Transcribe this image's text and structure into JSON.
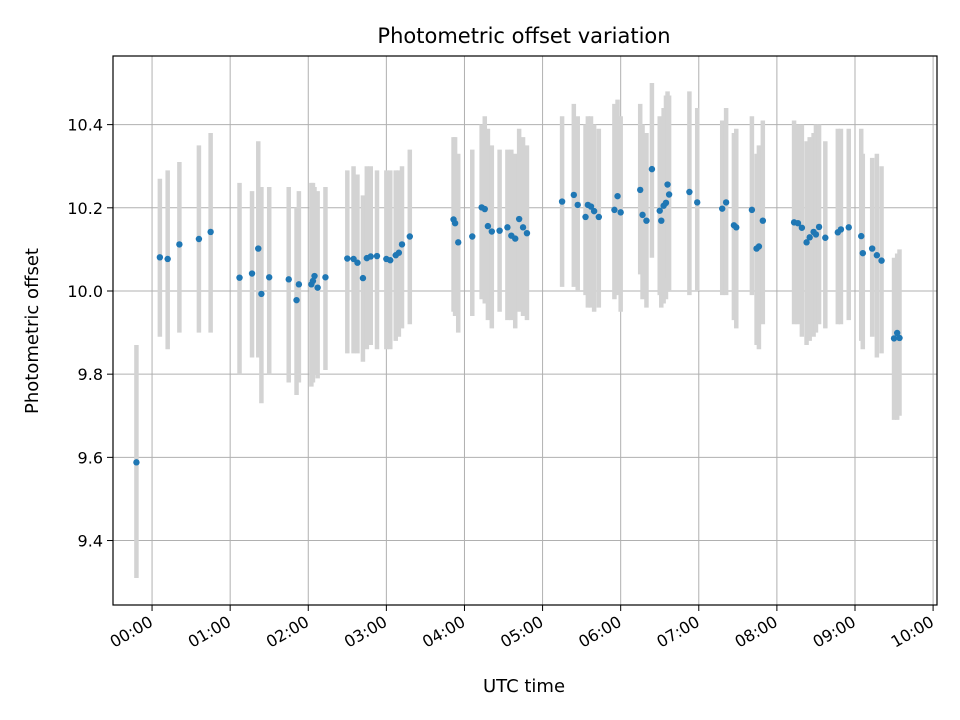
{
  "chart_data": {
    "type": "scatter",
    "title": "Photometric offset variation",
    "xlabel": "UTC time",
    "ylabel": "Photometric offset",
    "xlim": [
      -0.5,
      10.05
    ],
    "ylim": [
      9.245,
      10.565
    ],
    "grid": true,
    "xticks": [
      0,
      1,
      2,
      3,
      4,
      5,
      6,
      7,
      8,
      9,
      10
    ],
    "xtick_labels": [
      "00:00",
      "01:00",
      "02:00",
      "03:00",
      "04:00",
      "05:00",
      "06:00",
      "07:00",
      "08:00",
      "09:00",
      "10:00"
    ],
    "yticks": [
      9.4,
      9.6,
      9.8,
      10.0,
      10.2,
      10.4
    ],
    "ytick_labels": [
      "9.4",
      "9.6",
      "9.8",
      "10.0",
      "10.2",
      "10.4"
    ],
    "point_color": "#1f77b4",
    "errorbar_color": "#d3d3d3",
    "series": [
      {
        "name": "offset",
        "x": [
          -0.2,
          0.1,
          0.2,
          0.35,
          0.6,
          0.75,
          1.12,
          1.28,
          1.36,
          1.4,
          1.5,
          1.75,
          1.85,
          1.88,
          2.04,
          2.06,
          2.08,
          2.12,
          2.22,
          2.5,
          2.58,
          2.63,
          2.7,
          2.75,
          2.8,
          2.88,
          3.0,
          3.05,
          3.12,
          3.16,
          3.2,
          3.3,
          3.86,
          3.88,
          3.92,
          4.1,
          4.22,
          4.26,
          4.3,
          4.35,
          4.45,
          4.55,
          4.6,
          4.65,
          4.7,
          4.75,
          4.8,
          5.25,
          5.4,
          5.45,
          5.55,
          5.58,
          5.62,
          5.66,
          5.72,
          5.92,
          5.96,
          6.0,
          6.25,
          6.28,
          6.33,
          6.4,
          6.5,
          6.52,
          6.55,
          6.58,
          6.6,
          6.62,
          6.88,
          6.98,
          7.3,
          7.35,
          7.45,
          7.48,
          7.68,
          7.74,
          7.77,
          7.82,
          8.22,
          8.27,
          8.32,
          8.38,
          8.42,
          8.47,
          8.5,
          8.54,
          8.62,
          8.78,
          8.82,
          8.92,
          9.08,
          9.1,
          9.22,
          9.28,
          9.34,
          9.5,
          9.54,
          9.57
        ],
        "y": [
          9.588,
          10.081,
          10.077,
          10.112,
          10.125,
          10.142,
          10.032,
          10.042,
          10.102,
          9.993,
          10.033,
          10.028,
          9.978,
          10.016,
          10.016,
          10.024,
          10.036,
          10.008,
          10.033,
          10.078,
          10.077,
          10.068,
          10.031,
          10.079,
          10.083,
          10.084,
          10.077,
          10.074,
          10.086,
          10.092,
          10.112,
          10.131,
          10.172,
          10.163,
          10.117,
          10.131,
          10.201,
          10.197,
          10.156,
          10.143,
          10.145,
          10.153,
          10.133,
          10.126,
          10.173,
          10.153,
          10.139,
          10.215,
          10.231,
          10.207,
          10.178,
          10.207,
          10.203,
          10.192,
          10.178,
          10.195,
          10.228,
          10.189,
          10.243,
          10.183,
          10.169,
          10.293,
          10.193,
          10.169,
          10.205,
          10.212,
          10.256,
          10.232,
          10.238,
          10.213,
          10.198,
          10.213,
          10.158,
          10.153,
          10.195,
          10.102,
          10.107,
          10.169,
          10.165,
          10.163,
          10.152,
          10.117,
          10.129,
          10.142,
          10.136,
          10.154,
          10.128,
          10.141,
          10.148,
          10.153,
          10.132,
          10.091,
          10.102,
          10.086,
          10.073,
          9.886,
          9.899,
          9.887
        ],
        "err_low": [
          9.31,
          9.89,
          9.86,
          9.9,
          9.9,
          9.9,
          9.8,
          9.84,
          9.84,
          9.73,
          9.8,
          9.78,
          9.75,
          9.78,
          9.77,
          9.78,
          9.8,
          9.79,
          9.81,
          9.85,
          9.85,
          9.85,
          9.83,
          9.86,
          9.87,
          9.86,
          9.86,
          9.86,
          9.88,
          9.89,
          9.91,
          9.92,
          9.95,
          9.94,
          9.9,
          9.94,
          9.98,
          9.97,
          9.93,
          9.91,
          9.95,
          9.93,
          9.93,
          9.91,
          9.95,
          9.94,
          9.93,
          10.01,
          10.01,
          10.0,
          9.99,
          9.96,
          9.96,
          9.95,
          9.96,
          9.98,
          9.99,
          9.95,
          10.04,
          9.98,
          9.96,
          10.08,
          9.99,
          9.96,
          9.97,
          9.98,
          10.03,
          10.0,
          9.99,
          10.0,
          9.99,
          9.99,
          9.93,
          9.91,
          9.99,
          9.87,
          9.86,
          9.92,
          9.92,
          9.92,
          9.89,
          9.87,
          9.88,
          9.89,
          9.9,
          9.92,
          9.91,
          9.92,
          9.92,
          9.93,
          9.88,
          9.86,
          9.89,
          9.84,
          9.85,
          9.69,
          9.69,
          9.7
        ],
        "err_high": [
          9.87,
          10.27,
          10.29,
          10.31,
          10.35,
          10.38,
          10.26,
          10.24,
          10.36,
          10.25,
          10.25,
          10.25,
          10.2,
          10.24,
          10.26,
          10.26,
          10.25,
          10.24,
          10.25,
          10.29,
          10.3,
          10.28,
          10.23,
          10.3,
          10.3,
          10.29,
          10.29,
          10.29,
          10.29,
          10.29,
          10.3,
          10.34,
          10.37,
          10.37,
          10.33,
          10.34,
          10.4,
          10.42,
          10.39,
          10.35,
          10.34,
          10.34,
          10.34,
          10.33,
          10.39,
          10.37,
          10.35,
          10.42,
          10.45,
          10.42,
          10.4,
          10.42,
          10.42,
          10.4,
          10.39,
          10.45,
          10.46,
          10.42,
          10.45,
          10.4,
          10.38,
          10.5,
          10.42,
          10.39,
          10.44,
          10.47,
          10.48,
          10.47,
          10.48,
          10.44,
          10.41,
          10.44,
          10.38,
          10.39,
          10.42,
          10.33,
          10.35,
          10.41,
          10.41,
          10.4,
          10.4,
          10.36,
          10.37,
          10.38,
          10.4,
          10.4,
          10.36,
          10.39,
          10.39,
          10.39,
          10.39,
          10.33,
          10.32,
          10.33,
          10.3,
          10.08,
          10.09,
          10.1
        ]
      }
    ]
  }
}
